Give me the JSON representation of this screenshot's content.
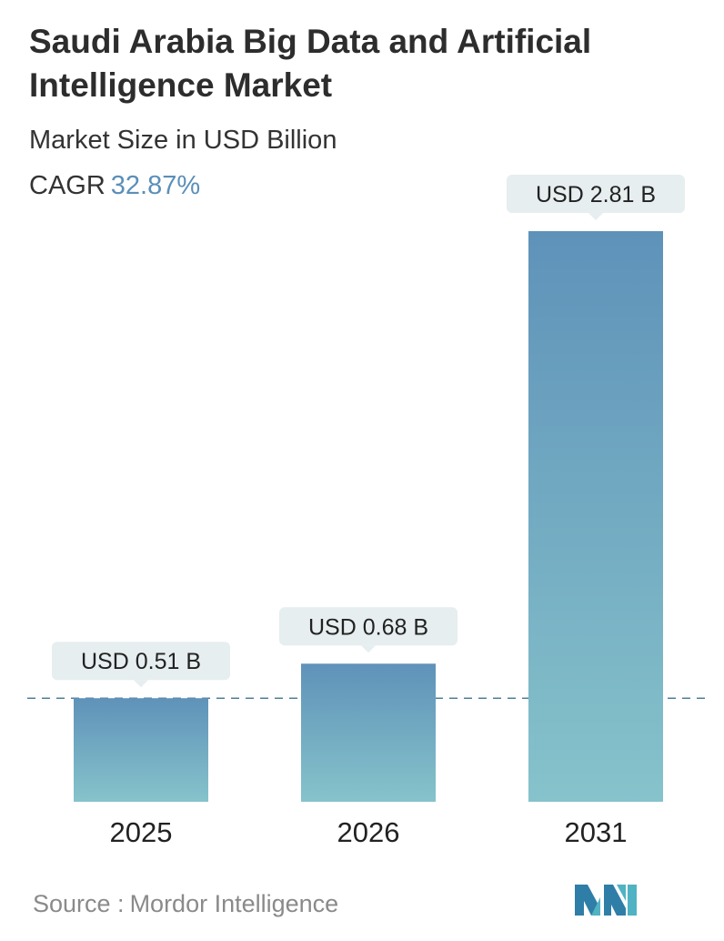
{
  "header": {
    "title": "Saudi Arabia Big Data and Artificial Intelligence Market",
    "subtitle": "Market Size in USD Billion",
    "cagr_label": "CAGR",
    "cagr_value": "32.87%"
  },
  "footer": {
    "source_label": "Source :",
    "source_name": "Mordor Intelligence",
    "logo_icon": "mordor-intelligence-logo-icon"
  },
  "colors": {
    "bar_top": "#5f92b9",
    "bar_bottom": "#86c3cb",
    "callout_bg": "#e6eeef",
    "dashed_line": "#4f7f98",
    "cagr_accent": "#5b8fb9"
  },
  "chart_data": {
    "type": "bar",
    "title": "Saudi Arabia Big Data and Artificial Intelligence Market",
    "ylabel": "",
    "xlabel": "",
    "categories": [
      "2025",
      "2026",
      "2031"
    ],
    "values": [
      0.51,
      0.68,
      2.81
    ],
    "data_labels": [
      "USD 0.51 B",
      "USD 0.68 B",
      "USD 2.81 B"
    ],
    "ylim": [
      0,
      2.81
    ],
    "reference_line": 0.51,
    "grid": false,
    "legend": "none"
  }
}
